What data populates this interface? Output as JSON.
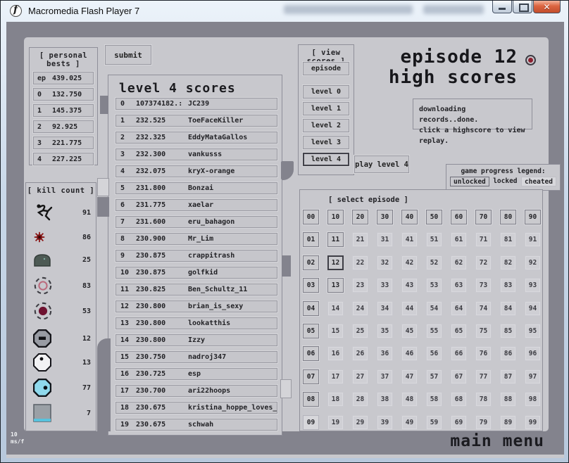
{
  "window": {
    "title": "Macromedia Flash Player 7"
  },
  "hud": {
    "fps_value": "10",
    "fps_unit": "ms/f",
    "main_menu": "main menu"
  },
  "personal_bests": {
    "header": "[ personal bests ]",
    "rows": [
      {
        "label": "ep",
        "value": "439.025"
      },
      {
        "label": "0",
        "value": "132.750"
      },
      {
        "label": "1",
        "value": "145.375"
      },
      {
        "label": "2",
        "value": "92.925"
      },
      {
        "label": "3",
        "value": "221.775"
      },
      {
        "label": "4",
        "value": "227.225"
      }
    ]
  },
  "submit_label": "submit",
  "level_scores": {
    "title": "level 4 scores",
    "rows": [
      {
        "rank": "0",
        "score": "107374182.:",
        "name": "JC239"
      },
      {
        "rank": "1",
        "score": "232.525",
        "name": "ToeFaceKiller"
      },
      {
        "rank": "2",
        "score": "232.325",
        "name": "EddyMataGallos"
      },
      {
        "rank": "3",
        "score": "232.300",
        "name": "vankusss"
      },
      {
        "rank": "4",
        "score": "232.075",
        "name": "kryX-orange"
      },
      {
        "rank": "5",
        "score": "231.800",
        "name": "Bonzai"
      },
      {
        "rank": "6",
        "score": "231.775",
        "name": "xaelar"
      },
      {
        "rank": "7",
        "score": "231.600",
        "name": "eru_bahagon"
      },
      {
        "rank": "8",
        "score": "230.900",
        "name": "Mr_Lim"
      },
      {
        "rank": "9",
        "score": "230.875",
        "name": "crappitrash"
      },
      {
        "rank": "10",
        "score": "230.875",
        "name": "golfkid"
      },
      {
        "rank": "11",
        "score": "230.825",
        "name": "Ben_Schultz_11"
      },
      {
        "rank": "12",
        "score": "230.800",
        "name": "brian_is_sexy"
      },
      {
        "rank": "13",
        "score": "230.800",
        "name": "lookatthis"
      },
      {
        "rank": "14",
        "score": "230.800",
        "name": "Izzy"
      },
      {
        "rank": "15",
        "score": "230.750",
        "name": "nadroj347"
      },
      {
        "rank": "16",
        "score": "230.725",
        "name": "esp"
      },
      {
        "rank": "17",
        "score": "230.700",
        "name": "ari22hoops"
      },
      {
        "rank": "18",
        "score": "230.675",
        "name": "kristina_hoppe_loves_cock"
      },
      {
        "rank": "19",
        "score": "230.675",
        "name": "schwah"
      }
    ]
  },
  "view_scores": {
    "header": "[ view scores ]",
    "episode_label": "episode",
    "level_labels": [
      "level 0",
      "level 1",
      "level 2",
      "level 3",
      "level 4"
    ],
    "selected": "level 4"
  },
  "play_label": "play level 4",
  "heading": {
    "line1": "episode 12",
    "line2": "high scores"
  },
  "status": {
    "line1": "downloading records..done.",
    "line2": "click a highscore to view replay."
  },
  "legend": {
    "title": "game progress legend:",
    "items": [
      "unlocked",
      "locked",
      "cheated"
    ]
  },
  "episode_select": {
    "header": "[ select episode ]",
    "selected": "12",
    "cheated": [
      "09"
    ],
    "unlocked": [
      "00",
      "01",
      "02",
      "03",
      "04",
      "05",
      "06",
      "07",
      "08",
      "10",
      "11",
      "13",
      "20",
      "30",
      "40",
      "50",
      "60",
      "70",
      "80",
      "90"
    ]
  },
  "kill_count": {
    "header": "[ kill count ]",
    "rows": [
      {
        "icon": "ninja-icon",
        "count": "91"
      },
      {
        "icon": "mine-icon",
        "count": "86"
      },
      {
        "icon": "turret-icon",
        "count": "25"
      },
      {
        "icon": "gauss-turret-icon",
        "count": "83"
      },
      {
        "icon": "homing-launcher-icon",
        "count": "53"
      },
      {
        "icon": "zap-drone-icon",
        "count": "12"
      },
      {
        "icon": "seeker-drone-icon",
        "count": "13"
      },
      {
        "icon": "laser-drone-icon",
        "count": "77"
      },
      {
        "icon": "thwump-icon",
        "count": "7"
      }
    ]
  },
  "colors": {
    "stage_frame": "#83838d",
    "panel": "#c8c8cd",
    "panel_border": "#8f8f99",
    "selected_border": "#3e3e46",
    "close_button": "#c24d2c",
    "episode_bullet": "#8c2030",
    "mine_red": "#8c1616",
    "laser_cyan": "#8fd9ec",
    "thwump_cyan": "#57c3de"
  }
}
